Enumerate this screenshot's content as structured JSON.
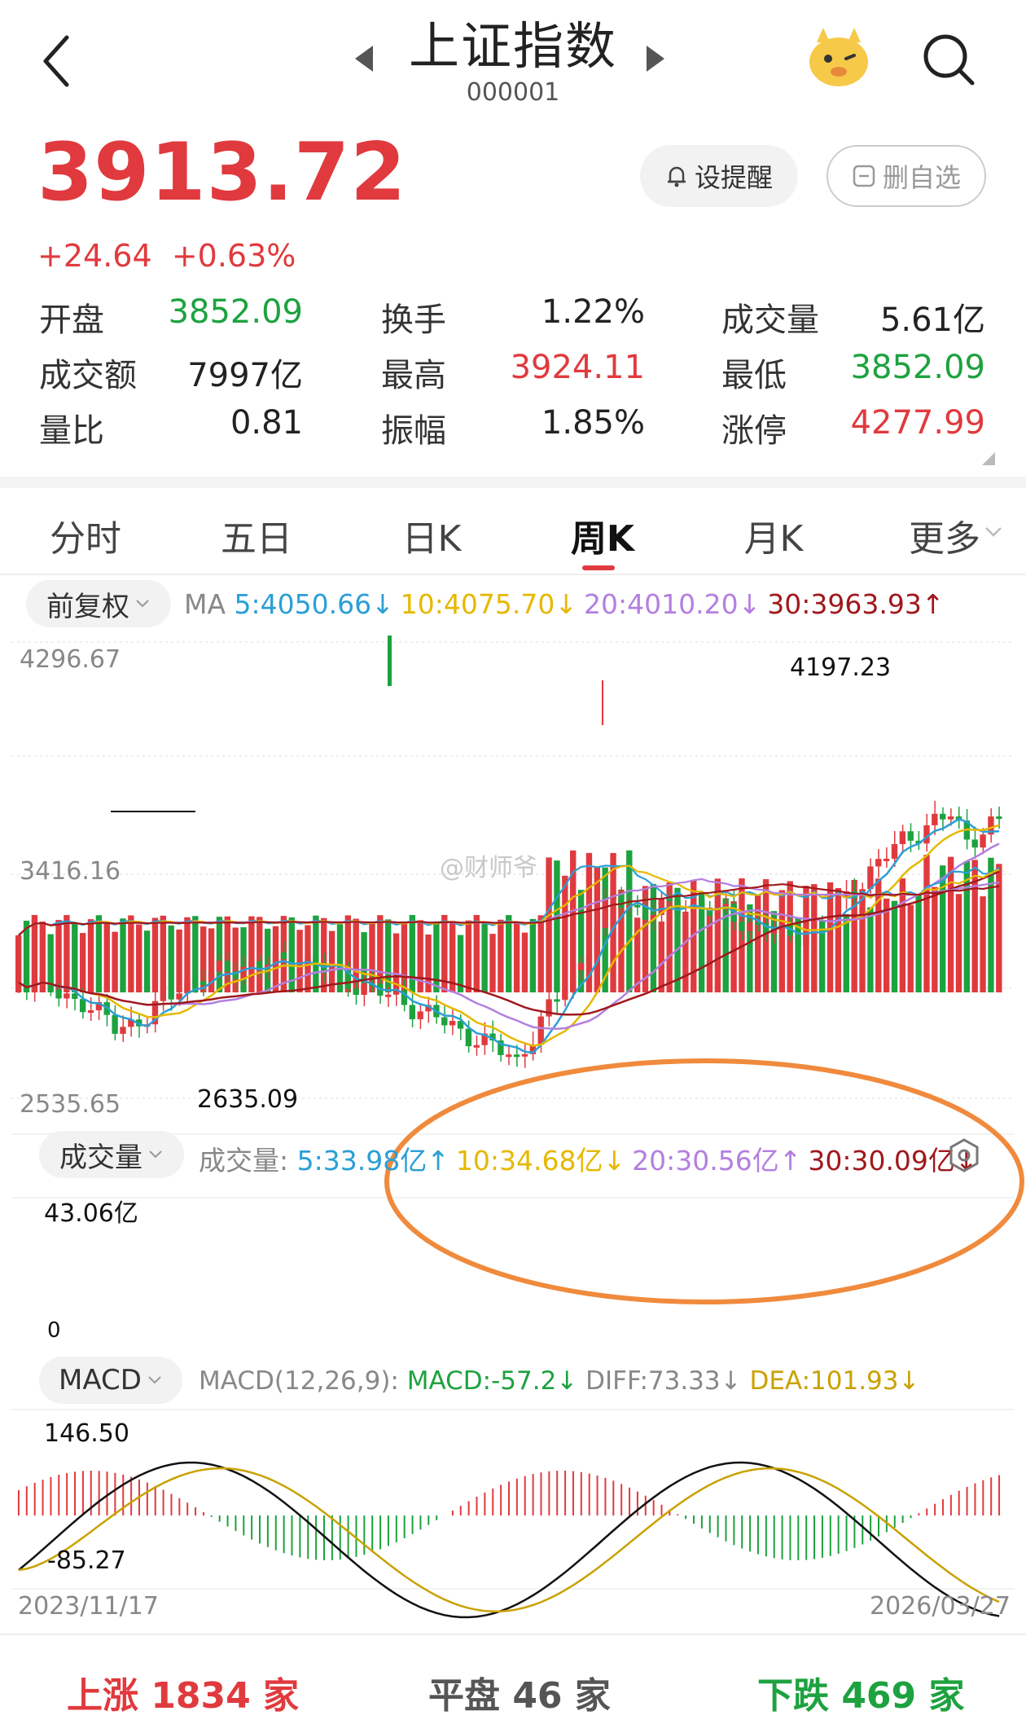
{
  "header": {
    "title": "上证指数",
    "code": "000001"
  },
  "quote": {
    "price": "3913.72",
    "change": "+24.64",
    "change_pct": "+0.63%",
    "alert_label": "设提醒",
    "remove_label": "删自选",
    "stats": [
      {
        "label": "开盘",
        "value": "3852.09",
        "color": "green"
      },
      {
        "label": "换手",
        "value": "1.22%",
        "color": "dark"
      },
      {
        "label": "成交量",
        "value": "5.61亿",
        "color": "dark"
      },
      {
        "label": "成交额",
        "value": "7997亿",
        "color": "dark"
      },
      {
        "label": "最高",
        "value": "3924.11",
        "color": "red"
      },
      {
        "label": "最低",
        "value": "3852.09",
        "color": "green"
      },
      {
        "label": "量比",
        "value": "0.81",
        "color": "dark"
      },
      {
        "label": "振幅",
        "value": "1.85%",
        "color": "dark"
      },
      {
        "label": "涨停",
        "value": "4277.99",
        "color": "red"
      }
    ]
  },
  "tabs": [
    "分时",
    "五日",
    "日K",
    "周K",
    "月K",
    "更多"
  ],
  "active_tab": "周K",
  "kline": {
    "adjust_label": "前复权",
    "ma_prefix": "MA",
    "ma": [
      {
        "text": "5:4050.66↓",
        "color": "#2a9fd6"
      },
      {
        "text": "10:4075.70↓",
        "color": "#e6b800"
      },
      {
        "text": "20:4010.20↓",
        "color": "#b37fe0"
      },
      {
        "text": "30:3963.93↑",
        "color": "#a0181c"
      }
    ],
    "y_high": "4296.67",
    "y_mid": "3416.16",
    "y_low": "2535.65",
    "max_label": "4197.23",
    "min_label": "2635.09",
    "watermark": "@财师爷"
  },
  "volume": {
    "selector_label": "成交量",
    "prefix": "成交量:",
    "ma": [
      {
        "text": "5:33.98亿↑",
        "color": "#2a9fd6"
      },
      {
        "text": "10:34.68亿↓",
        "color": "#e6b800"
      },
      {
        "text": "20:30.56亿↑",
        "color": "#b37fe0"
      },
      {
        "text": "30:30.09亿↓",
        "color": "#a0181c"
      }
    ],
    "top_label": "43.06亿",
    "zero_label": "0"
  },
  "macd": {
    "selector_label": "MACD",
    "params": "MACD(12,26,9):",
    "macd_text": "MACD:-57.2↓",
    "diff_text": "DIFF:73.33↓",
    "dea_text": "DEA:101.93↓",
    "top_label": "146.50",
    "bottom_label": "-85.27"
  },
  "dates": {
    "start": "2023/11/17",
    "end": "2026/03/27"
  },
  "footer": {
    "up": "上涨 1834 家",
    "flat": "平盘 46 家",
    "down": "下跌 469 家"
  },
  "colors": {
    "up": "#e03a3e",
    "down": "#1da23f",
    "annotation": "#f08a3c"
  }
}
